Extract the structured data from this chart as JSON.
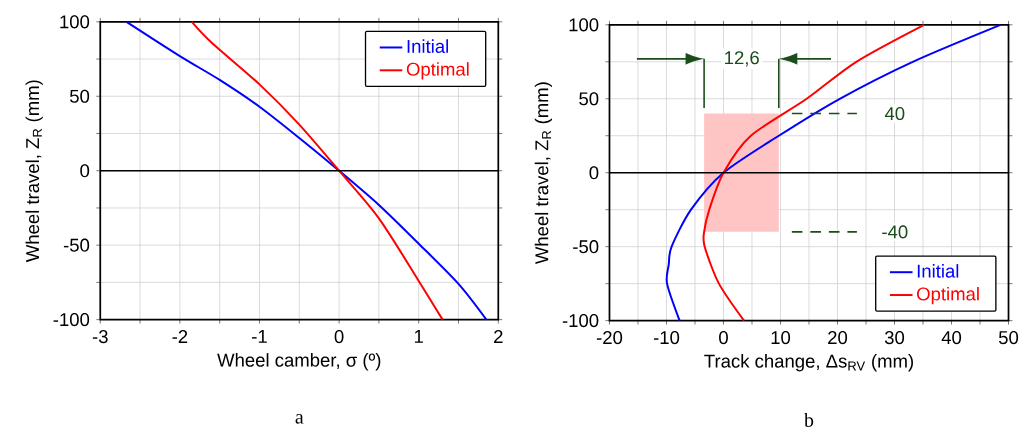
{
  "chart_data": [
    {
      "type": "line",
      "xlabel": "Wheel camber, σ (º)",
      "ylabel": "Wheel travel, Z$_{R}$ (mm)",
      "xlim": [
        -3,
        2
      ],
      "ylim": [
        -100,
        100
      ],
      "xticks": [
        -3,
        {
          "value": -2.5,
          "label": null
        },
        -2,
        {
          "value": -1.5,
          "label": null
        },
        -1,
        {
          "value": -0.5,
          "label": null
        },
        0,
        {
          "value": 0.5,
          "label": null
        },
        1,
        {
          "value": 1.5,
          "label": null
        },
        2
      ],
      "yticks": [
        -100,
        {
          "value": -75,
          "label": null
        },
        -50,
        {
          "value": -25,
          "label": null
        },
        0,
        {
          "value": 25,
          "label": null
        },
        50,
        {
          "value": 75,
          "label": null
        },
        100
      ],
      "grid": true,
      "legend": "top right",
      "marker": "none",
      "line_style": "solid",
      "ref_lines": [
        {
          "axis": "y",
          "value": 0,
          "color": "#000000"
        }
      ],
      "annotations": [
        "a"
      ],
      "series": [
        {
          "name": "Initial",
          "color": "#0000ff",
          "x": [
            -2.67,
            -2,
            -1.5,
            -1,
            -0.5,
            0,
            0.5,
            1,
            1.5,
            1.85
          ],
          "values": [
            100,
            77,
            61,
            43,
            22,
            0,
            -23,
            -49,
            -76,
            -100
          ]
        },
        {
          "name": "Optimal",
          "color": "#ff0000",
          "x": [
            -1.85,
            -1.6,
            -1,
            -0.5,
            0,
            0.5,
            1,
            1.3
          ],
          "values": [
            100,
            86,
            58,
            31,
            0,
            -32,
            -74,
            -100
          ]
        }
      ]
    },
    {
      "type": "line",
      "xlabel": "Track change, Δs$_{RV}$ (mm)",
      "ylabel": "Wheel travel, Z$_{R}$ (mm)",
      "xlim": [
        -20,
        50
      ],
      "ylim": [
        -100,
        100
      ],
      "xticks": [
        -20,
        {
          "value": -15,
          "label": null
        },
        -10,
        {
          "value": -5,
          "label": null
        },
        0,
        {
          "value": 5,
          "label": null
        },
        10,
        {
          "value": 15,
          "label": null
        },
        20,
        {
          "value": 25,
          "label": null
        },
        30,
        {
          "value": 35,
          "label": null
        },
        40,
        {
          "value": 45,
          "label": null
        },
        50
      ],
      "yticks": [
        -100,
        {
          "value": -75,
          "label": null
        },
        -50,
        {
          "value": -25,
          "label": null
        },
        0,
        {
          "value": 25,
          "label": null
        },
        50,
        {
          "value": 75,
          "label": null
        },
        100
      ],
      "grid": true,
      "legend": "bottom right",
      "marker": "none",
      "line_style": "solid",
      "ref_lines": [
        {
          "axis": "y",
          "value": 0,
          "color": "#000000"
        },
        {
          "axis": "y",
          "value": 40,
          "label": "40",
          "color": "#1a4d1a",
          "line_style": "dashed"
        },
        {
          "axis": "y",
          "value": -40,
          "label": "-40",
          "color": "#1a4d1a",
          "line_style": "dashed"
        }
      ],
      "bands": [
        {
          "axis": "x",
          "from": -3.4,
          "to": 9.7,
          "color": "#ffc4c4"
        }
      ],
      "annotations": [
        {
          "text": "12,6",
          "x": 3.2,
          "y": 77
        },
        "b"
      ],
      "series": [
        {
          "name": "Initial",
          "color": "#0000ff",
          "x": [
            -7.7,
            -9.9,
            -9.6,
            -9.1,
            -5.7,
            0,
            9.7,
            20.4,
            33.2,
            48.6
          ],
          "values": [
            -100,
            -75,
            -62,
            -50,
            -25,
            0,
            25,
            50,
            75,
            100
          ]
        },
        {
          "name": "Optimal",
          "color": "#ff0000",
          "x": [
            3.6,
            -0.8,
            -3.3,
            -3.4,
            -2.5,
            0,
            4.8,
            14.6,
            23.3,
            35.2
          ],
          "values": [
            -100,
            -75,
            -50,
            -40,
            -25,
            0,
            25,
            50,
            75,
            100
          ]
        }
      ]
    }
  ]
}
